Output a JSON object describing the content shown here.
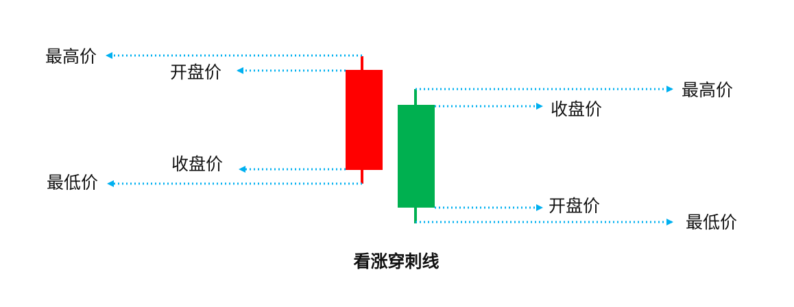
{
  "caption": "看涨穿刺线",
  "colors": {
    "bearish": "#ff0000",
    "bullish": "#00b050",
    "pointer": "#00b0f0",
    "text": "#111111"
  },
  "left_candle": {
    "labels": {
      "high": "最高价",
      "open": "开盘价",
      "close": "收盘价",
      "low": "最低价"
    }
  },
  "right_candle": {
    "labels": {
      "high": "最高价",
      "close": "收盘价",
      "open": "开盘价",
      "low": "最低价"
    }
  }
}
